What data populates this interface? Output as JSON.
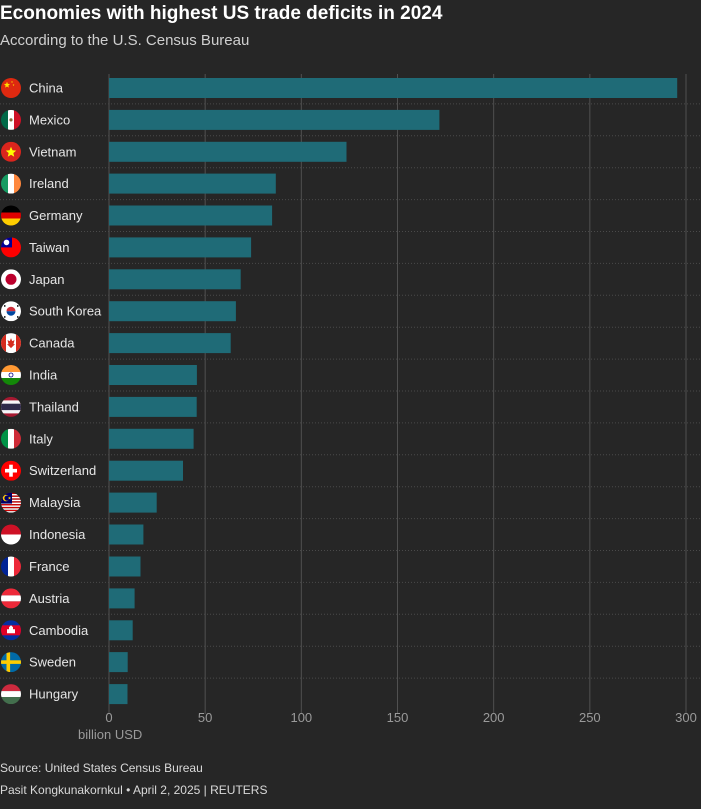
{
  "title": "Economies with highest US trade deficits in 2024",
  "subtitle": "According to the U.S. Census Bureau",
  "source": "Source: United States Census Bureau",
  "credit": "Pasit Kongkunakornkul • April 2, 2025 | REUTERS",
  "colors": {
    "bar": "#1f6b77",
    "background": "#262626",
    "grid": "#505050",
    "text": "#e6e6e6",
    "axis_text": "#9a9a9a"
  },
  "chart_data": {
    "type": "bar",
    "orientation": "horizontal",
    "categories": [
      "China",
      "Mexico",
      "Vietnam",
      "Ireland",
      "Germany",
      "Taiwan",
      "Japan",
      "South Korea",
      "Canada",
      "India",
      "Thailand",
      "Italy",
      "Switzerland",
      "Malaysia",
      "Indonesia",
      "France",
      "Austria",
      "Cambodia",
      "Sweden",
      "Hungary"
    ],
    "values": [
      295.4,
      171.8,
      123.5,
      86.7,
      84.8,
      73.9,
      68.5,
      66.0,
      63.3,
      45.7,
      45.6,
      44.0,
      38.5,
      24.8,
      17.9,
      16.4,
      13.3,
      12.3,
      9.7,
      9.6
    ],
    "flags": [
      "china-flag-icon",
      "mexico-flag-icon",
      "vietnam-flag-icon",
      "ireland-flag-icon",
      "germany-flag-icon",
      "taiwan-flag-icon",
      "japan-flag-icon",
      "south-korea-flag-icon",
      "canada-flag-icon",
      "india-flag-icon",
      "thailand-flag-icon",
      "italy-flag-icon",
      "switzerland-flag-icon",
      "malaysia-flag-icon",
      "indonesia-flag-icon",
      "france-flag-icon",
      "austria-flag-icon",
      "cambodia-flag-icon",
      "sweden-flag-icon",
      "hungary-flag-icon"
    ],
    "xticks": [
      0,
      50,
      100,
      150,
      200,
      250,
      300
    ],
    "xlabel": "billion USD",
    "xlim": [
      0,
      300
    ],
    "grid": true
  }
}
